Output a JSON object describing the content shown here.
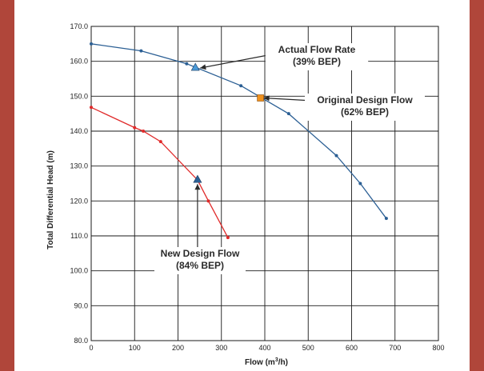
{
  "chart_data": {
    "type": "line",
    "xlabel_main": "Flow (m",
    "xlabel_sup": "3",
    "xlabel_end": "/h)",
    "ylabel": "Total Differential Head (m)",
    "xlim": [
      0,
      800
    ],
    "ylim": [
      80,
      170
    ],
    "x_ticks": [
      "0",
      "100",
      "200",
      "300",
      "400",
      "500",
      "600",
      "700",
      "800"
    ],
    "y_ticks": [
      "80.0",
      "90.0",
      "100.0",
      "110.0",
      "120.0",
      "130.0",
      "140.0",
      "150.0",
      "160.0",
      "170.0"
    ],
    "grid": true,
    "series": [
      {
        "color": "#2b5f94",
        "x": [
          0,
          115,
          220,
          240,
          345,
          455,
          565,
          620,
          680
        ],
        "y": [
          165,
          163,
          159.3,
          158.3,
          153,
          145,
          133,
          125,
          115
        ]
      },
      {
        "color": "#e02a2a",
        "x": [
          0,
          100,
          120,
          160,
          245,
          270,
          315
        ],
        "y": [
          146.8,
          141,
          140,
          137,
          126,
          120,
          109.5
        ]
      }
    ],
    "markers": [
      {
        "name": "actual-flow-marker",
        "shape": "triangle",
        "x": 240,
        "y": 158.3,
        "color": "#4a9ad8"
      },
      {
        "name": "original-design-marker",
        "shape": "square",
        "x": 390,
        "y": 149.5,
        "color": "#f0921e"
      },
      {
        "name": "new-design-marker",
        "shape": "triangle",
        "x": 245,
        "y": 126.2,
        "color": "#2b5f94"
      }
    ],
    "annotations": [
      {
        "name": "actual-flow-label",
        "lines": [
          "Actual  Flow Rate",
          "(39% BEP)"
        ]
      },
      {
        "name": "original-design-label",
        "lines": [
          "Original Design Flow",
          "(62% BEP)"
        ]
      },
      {
        "name": "new-design-label",
        "lines": [
          "New Design Flow",
          "(84% BEP)"
        ]
      }
    ]
  }
}
